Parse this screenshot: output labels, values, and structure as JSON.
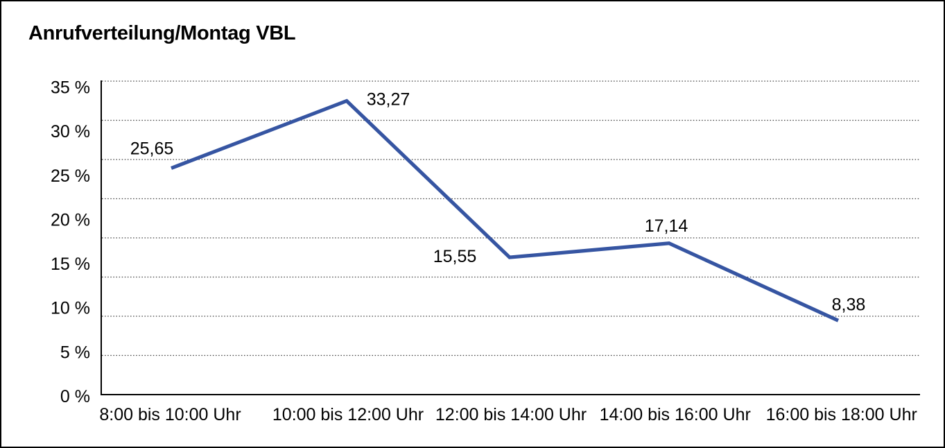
{
  "frame": {
    "background_color": "#ffffff",
    "border_color": "#000000"
  },
  "chart_data": {
    "type": "line",
    "title": "Anrufverteilung/Montag VBL",
    "categories": [
      "8:00 bis 10:00 Uhr",
      "10:00 bis 12:00 Uhr",
      "12:00 bis 14:00 Uhr",
      "14:00 bis 16:00 Uhr",
      "16:00 bis 18:00 Uhr"
    ],
    "values": [
      25.65,
      33.27,
      15.55,
      17.14,
      8.38
    ],
    "value_labels": [
      "25,65",
      "33,27",
      "15,55",
      "17,14",
      "8,38"
    ],
    "yticks": [
      {
        "value": 35,
        "label": "35 %"
      },
      {
        "value": 30,
        "label": "30 %"
      },
      {
        "value": 25,
        "label": "25 %"
      },
      {
        "value": 20,
        "label": "20 %"
      },
      {
        "value": 15,
        "label": "15 %"
      },
      {
        "value": 10,
        "label": "10 %"
      },
      {
        "value": 5,
        "label": "5 %"
      },
      {
        "value": 0,
        "label": "0 %"
      }
    ],
    "ylim": [
      0,
      35
    ],
    "xlabel": "",
    "ylabel": "",
    "grid": true,
    "gridline_style": "dotted",
    "legend": false,
    "line_color": "#3655a2",
    "axis_color": "#000000",
    "gridline_color": "#3c3c3c",
    "text_color": "#000000"
  }
}
